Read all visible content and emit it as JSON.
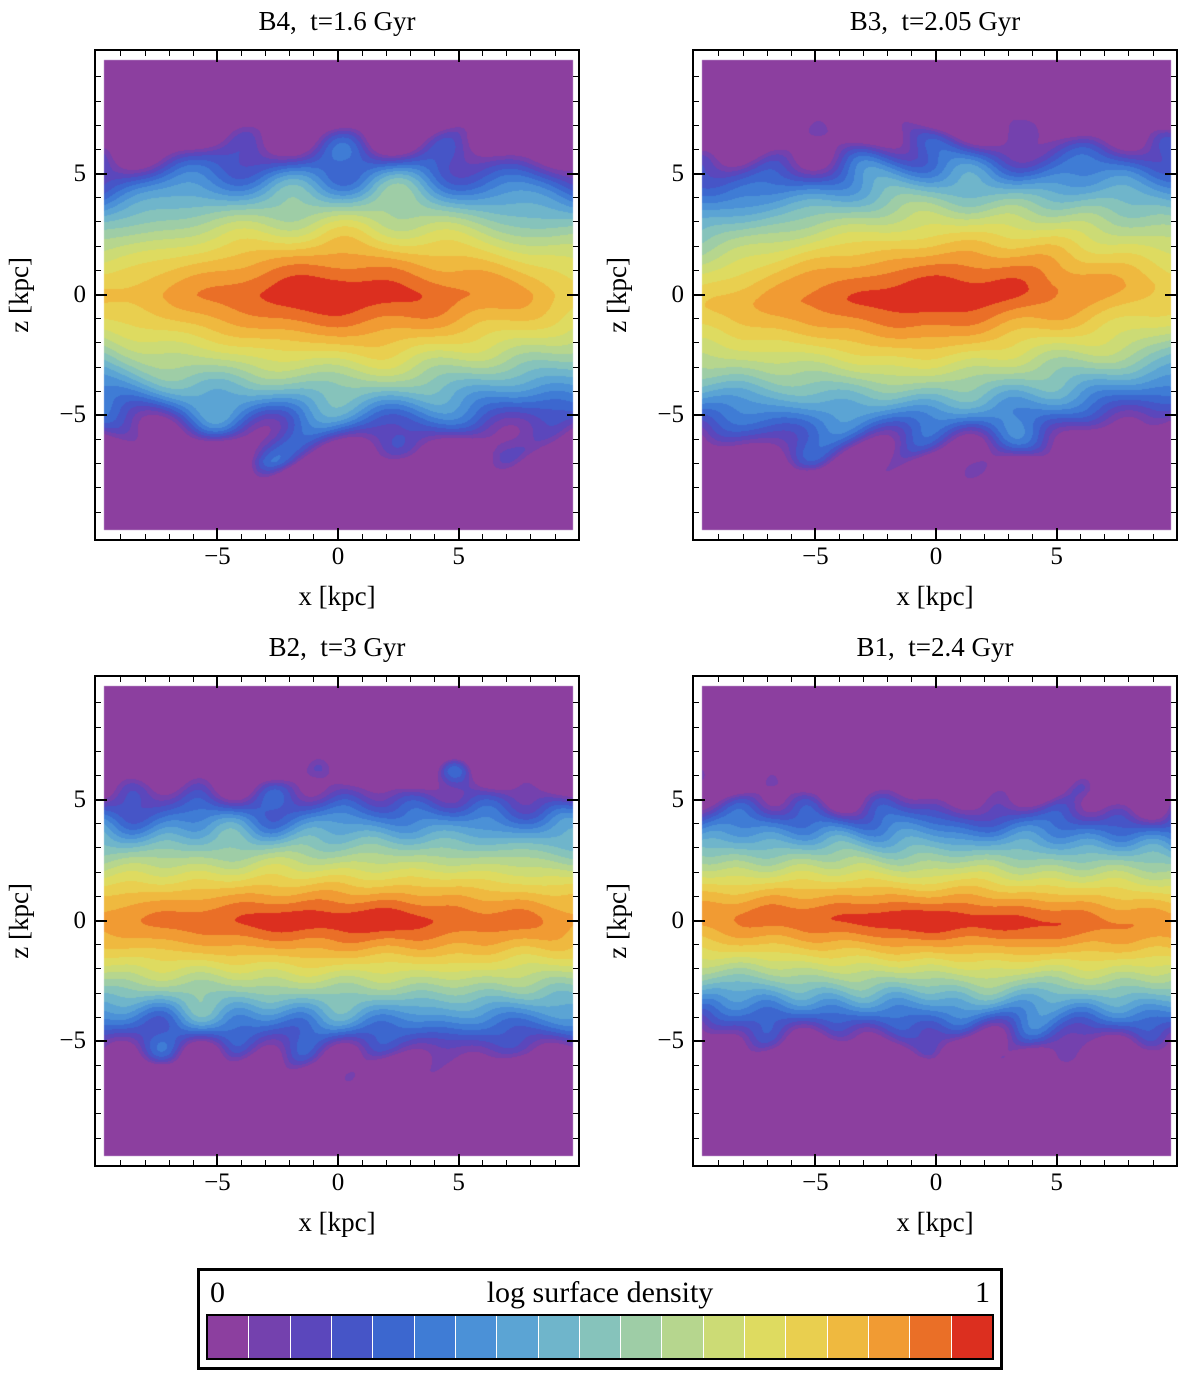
{
  "chart_data": {
    "type": "heatmap",
    "subtype": "filled-contour",
    "description": "Edge-on stellar surface density maps (x vs z) for four simulated galaxies at different times, with discrete rainbow contour shading.",
    "panels": [
      {
        "id": "B4",
        "title": "B4,  t=1.6 Gyr",
        "time_gyr": 1.6,
        "profile": {
          "a": 30,
          "b": 6.6,
          "p": 1.5,
          "q": 1.35,
          "tilt": 0.0,
          "noise": 0.95,
          "seed": 7
        }
      },
      {
        "id": "B3",
        "title": "B3,  t=2.05 Gyr",
        "time_gyr": 2.05,
        "profile": {
          "a": 30,
          "b": 6.8,
          "p": 1.5,
          "q": 1.35,
          "tilt": 0.045,
          "noise": 0.95,
          "seed": 13
        }
      },
      {
        "id": "B2",
        "title": "B2,  t=3 Gyr",
        "time_gyr": 3,
        "profile": {
          "a": 55,
          "b": 5.8,
          "p": 1.8,
          "q": 1.15,
          "tilt": 0.0,
          "noise": 0.9,
          "seed": 5
        }
      },
      {
        "id": "B1",
        "title": "B1,  t=2.4 Gyr",
        "time_gyr": 2.4,
        "profile": {
          "a": 58,
          "b": 5.2,
          "p": 1.8,
          "q": 1.15,
          "tilt": -0.02,
          "noise": 0.85,
          "seed": 21
        }
      }
    ],
    "axes": {
      "x_label": "x [kpc]",
      "z_label": "z [kpc]",
      "xlim": [
        -9.7,
        9.7
      ],
      "zlim": [
        -9.7,
        9.7
      ],
      "major_ticks": [
        -5,
        0,
        5
      ],
      "minor_tick_step": 1
    },
    "colorbar": {
      "title": "log surface density",
      "min_label": "0",
      "max_label": "1",
      "min": 0,
      "max": 1
    },
    "colormap": [
      "#8c3f9f",
      "#7441ae",
      "#5b47bc",
      "#4655c7",
      "#3c67cf",
      "#3f7cd5",
      "#4b91d7",
      "#5ba4d4",
      "#6fb5cb",
      "#86c3bb",
      "#9ecda6",
      "#b6d68e",
      "#ccdb75",
      "#dedb60",
      "#e9cf4f",
      "#efb93f",
      "#f19b33",
      "#ea6f27",
      "#dc2f1f"
    ]
  }
}
